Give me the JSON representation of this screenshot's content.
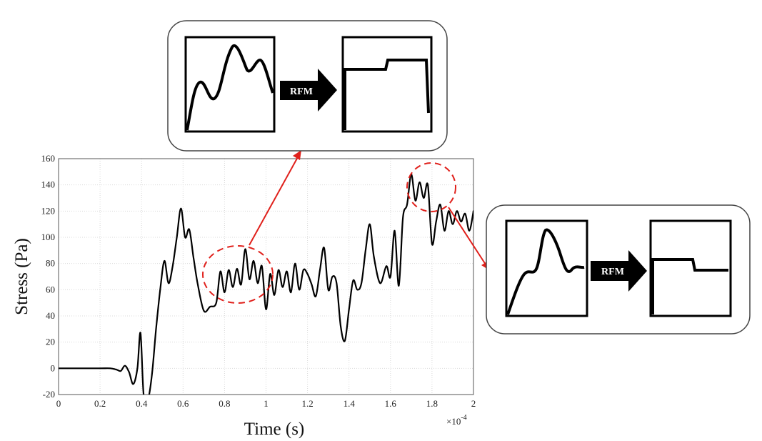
{
  "chart_data": {
    "type": "line",
    "xlabel": "Time (s)",
    "ylabel": "Stress (Pa)",
    "x_exponent_base": "×10",
    "x_exponent_power": "-4",
    "xlim": [
      0,
      2
    ],
    "ylim": [
      -20,
      160
    ],
    "xticks": [
      "0",
      "0.2",
      "0.4",
      "0.6",
      "0.8",
      "1",
      "1.2",
      "1.4",
      "1.6",
      "1.8",
      "2"
    ],
    "yticks": [
      "-20",
      "0",
      "20",
      "40",
      "60",
      "80",
      "100",
      "120",
      "140",
      "160"
    ],
    "grid": true,
    "series": [
      {
        "x": [
          0,
          0.1,
          0.2,
          0.25,
          0.28,
          0.3,
          0.32,
          0.34,
          0.36,
          0.38,
          0.395,
          0.41,
          0.43,
          0.45,
          0.47,
          0.49,
          0.51,
          0.53,
          0.55,
          0.57,
          0.59,
          0.61,
          0.63,
          0.65,
          0.67,
          0.7,
          0.73,
          0.76,
          0.78,
          0.8,
          0.82,
          0.84,
          0.86,
          0.88,
          0.9,
          0.92,
          0.94,
          0.96,
          0.98,
          1.0,
          1.02,
          1.04,
          1.06,
          1.08,
          1.1,
          1.12,
          1.14,
          1.16,
          1.18,
          1.2,
          1.22,
          1.24,
          1.26,
          1.28,
          1.3,
          1.32,
          1.34,
          1.36,
          1.38,
          1.4,
          1.42,
          1.44,
          1.46,
          1.48,
          1.5,
          1.52,
          1.55,
          1.58,
          1.6,
          1.62,
          1.64,
          1.66,
          1.68,
          1.7,
          1.72,
          1.74,
          1.76,
          1.78,
          1.8,
          1.82,
          1.84,
          1.86,
          1.88,
          1.9,
          1.92,
          1.94,
          1.96,
          1.98,
          2.0
        ],
        "y": [
          0,
          0,
          0,
          0,
          -1,
          -2,
          2,
          -3,
          -12,
          0,
          27,
          -20,
          -25,
          -5,
          30,
          60,
          82,
          65,
          78,
          100,
          122,
          100,
          106,
          85,
          65,
          44,
          47,
          50,
          74,
          58,
          75,
          62,
          76,
          64,
          91,
          68,
          82,
          65,
          78,
          45,
          72,
          56,
          75,
          62,
          74,
          58,
          80,
          60,
          75,
          72,
          64,
          55,
          75,
          92,
          60,
          70,
          65,
          32,
          21,
          45,
          67,
          60,
          65,
          90,
          110,
          85,
          65,
          78,
          70,
          105,
          63,
          115,
          125,
          148,
          128,
          142,
          130,
          140,
          95,
          112,
          125,
          105,
          120,
          110,
          120,
          112,
          118,
          105,
          120
        ]
      }
    ],
    "annotations": [
      {
        "label": "RFM",
        "target_x": 0.88,
        "target_y": 73
      },
      {
        "label": "RFM",
        "target_x": 1.8,
        "target_y": 138
      }
    ]
  },
  "colors": {
    "line": "#000000",
    "grid": "#d9d9d9",
    "annotation": "#e0201b",
    "inset_border": "#444444"
  }
}
